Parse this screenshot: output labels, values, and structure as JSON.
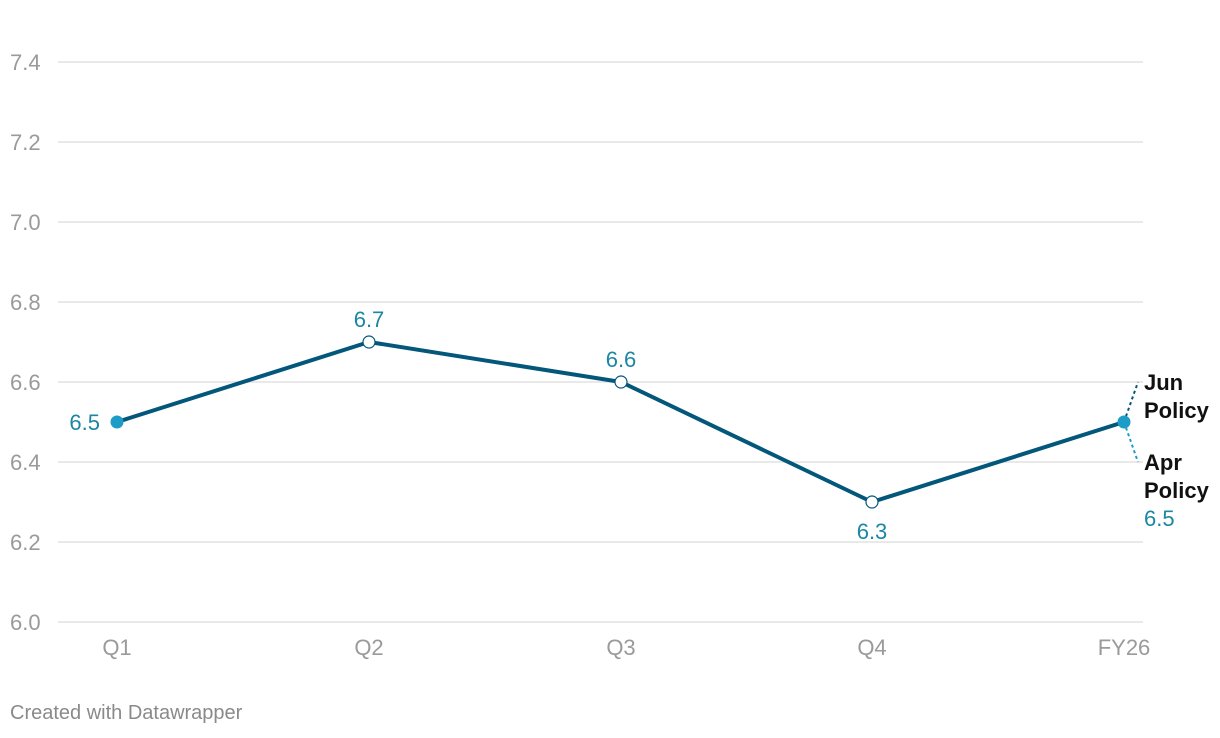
{
  "chart_data": {
    "type": "line",
    "categories": [
      "Q1",
      "Q2",
      "Q3",
      "Q4",
      "FY26"
    ],
    "ylim": [
      6.0,
      7.4
    ],
    "yticks": [
      "6.0",
      "6.2",
      "6.4",
      "6.6",
      "6.8",
      "7.0",
      "7.2",
      "7.4"
    ],
    "grid": true,
    "series": [
      {
        "name": "Jun Policy",
        "color": "#03577a",
        "values": [
          6.5,
          6.7,
          6.6,
          6.3,
          6.5
        ],
        "data_labels": [
          "6.5",
          "6.7",
          "6.6",
          "6.3",
          null
        ]
      },
      {
        "name": "Apr Policy",
        "color": "#1d9cc7",
        "values": [
          null,
          null,
          null,
          null,
          6.5
        ],
        "data_labels": [
          null,
          null,
          null,
          null,
          "6.5"
        ]
      }
    ]
  },
  "footer": {
    "credit": "Created with Datawrapper"
  }
}
